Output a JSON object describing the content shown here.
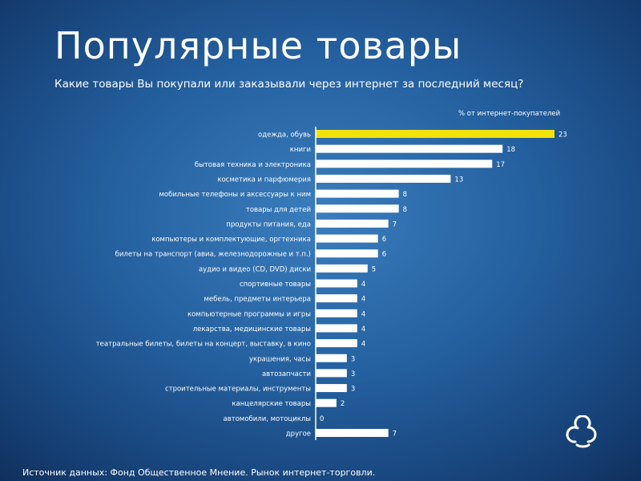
{
  "title": "Популярные товары",
  "subtitle": "Какие товары Вы покупали или заказывали через интернет за последний месяц?",
  "unit_label": "% от интернет-покупателей",
  "source": "Источник данных: Фонд Общественное Мнение.  Рынок  интернет-торговли.",
  "colors": {
    "bar": "#ffffff",
    "highlight_bar": "#f2e20a",
    "background": "#24609f"
  },
  "icons": {
    "logo": "cloud-logo-icon"
  },
  "chart_data": {
    "type": "bar",
    "orientation": "horizontal",
    "title": "",
    "xlabel": "% от интернет-покупателей",
    "ylabel": "",
    "xlim": [
      0,
      25
    ],
    "grid": false,
    "highlight_index": 0,
    "categories": [
      "одежда, обувь",
      "книги",
      "бытовая техника и электроника",
      "косметика и парфюмерия",
      "мобильные телефоны и аксессуары к ним",
      "товары для детей",
      "продукты питания, еда",
      "компьютеры и комплектующие, оргтехника",
      "билеты на транспорт (авиа, железнодорожные и т.п.)",
      "аудио и видео (CD, DVD) диски",
      "спортивные товары",
      "мебель, предметы интерьера",
      "компьютерные программы и игры",
      "лекарства, медицинские товары",
      "театральные билеты, билеты на концерт, выставку, в кино",
      "украшения, часы",
      "автозапчасти",
      "строительные материалы, инструменты",
      "канцелярские товары",
      "автомобили, мотоциклы",
      "другое"
    ],
    "values": [
      23,
      18,
      17,
      13,
      8,
      8,
      7,
      6,
      6,
      5,
      4,
      4,
      4,
      4,
      4,
      3,
      3,
      3,
      2,
      0,
      7
    ]
  }
}
